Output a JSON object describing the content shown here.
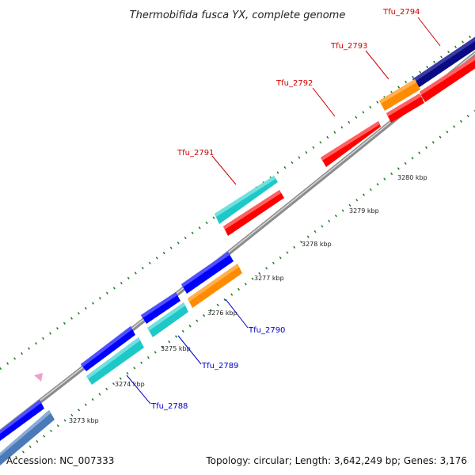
{
  "title": "Thermobifida fusca YX, complete genome",
  "footer": {
    "accession": "Accession: NC_007333",
    "summary": "Topology: circular; Length: 3,642,249 bp; Genes: 3,176"
  },
  "colors": {
    "background": "#ffffff",
    "backbone": "#8c8c8c",
    "tick_green": "#1f7a1f",
    "label_forward": "#cc0000",
    "label_reverse": "#0000cc",
    "gene_red": "#ff0000",
    "gene_blue": "#0000ff",
    "gene_cyan": "#1ec8c8",
    "gene_orange": "#ff8c00",
    "gene_navy": "#0a0a82",
    "gene_steel": "#4a7ab8",
    "marker_pink": "#f0a0c8"
  },
  "tick_labels": [
    "3273 kbp",
    "3274 kbp",
    "3275 kbp",
    "3276 kbp",
    "3277 kbp",
    "3278 kbp",
    "3279 kbp",
    "3280 kbp"
  ],
  "gene_labels": {
    "forward": [
      "Tfu_2791",
      "Tfu_2792",
      "Tfu_2793",
      "Tfu_2794"
    ],
    "reverse": [
      "Tfu_2788",
      "Tfu_2789",
      "Tfu_2790"
    ]
  }
}
